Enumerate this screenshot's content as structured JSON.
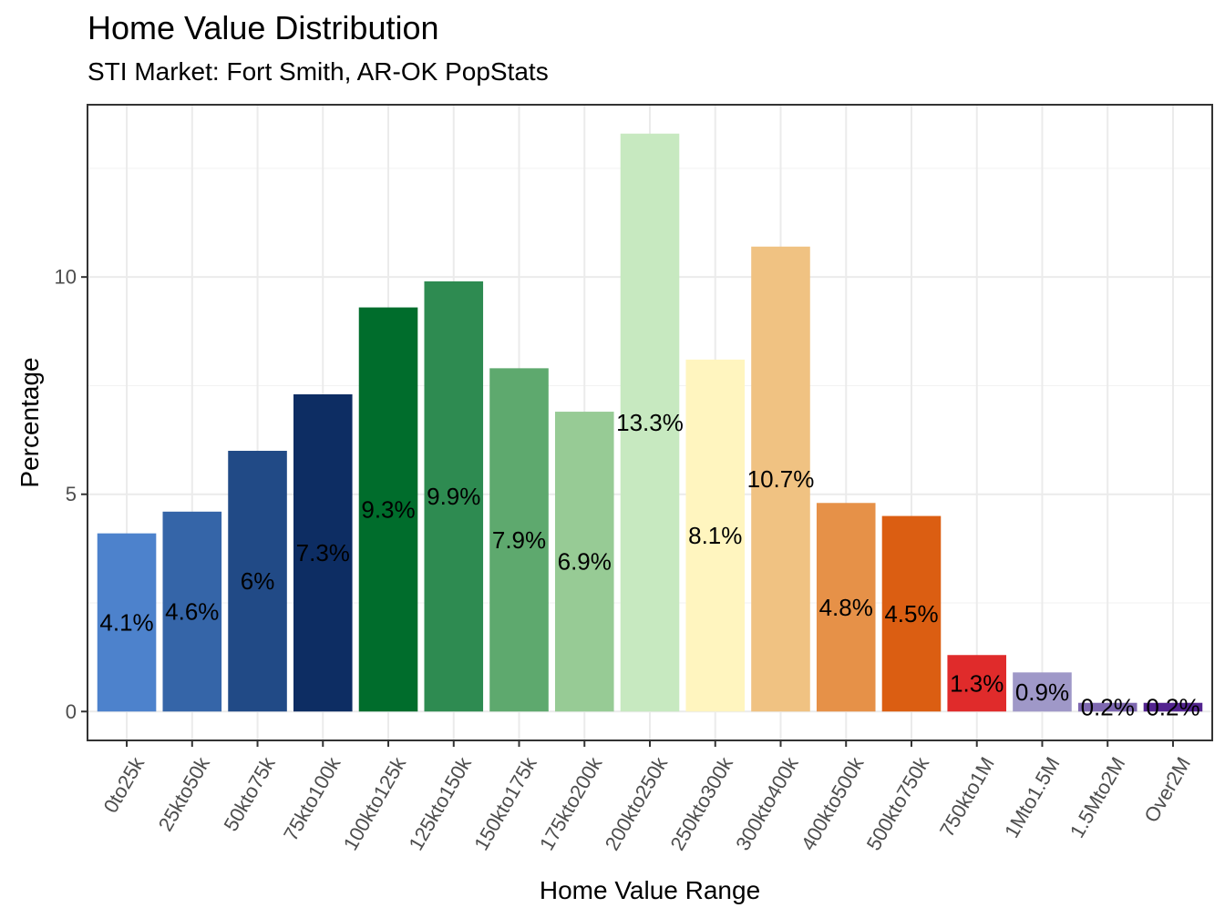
{
  "title": "Home Value Distribution",
  "subtitle": "STI Market: Fort Smith, AR-OK PopStats",
  "chart_data": {
    "type": "bar",
    "title": "Home Value Distribution",
    "subtitle": "STI Market: Fort Smith, AR-OK PopStats",
    "xlabel": "Home Value Range",
    "ylabel": "Percentage",
    "categories": [
      "0to25k",
      "25kto50k",
      "50kto75k",
      "75kto100k",
      "100kto125k",
      "125kto150k",
      "150kto175k",
      "175kto200k",
      "200kto250k",
      "250kto300k",
      "300kto400k",
      "400kto500k",
      "500kto750k",
      "750kto1M",
      "1Mto1.5M",
      "1.5Mto2M",
      "Over2M"
    ],
    "values": [
      4.1,
      4.6,
      6.0,
      7.3,
      9.3,
      9.9,
      7.9,
      6.9,
      13.3,
      8.1,
      10.7,
      4.8,
      4.5,
      1.3,
      0.9,
      0.2,
      0.2
    ],
    "labels": [
      "4.1%",
      "4.6%",
      "6%",
      "7.3%",
      "9.3%",
      "9.9%",
      "7.9%",
      "6.9%",
      "13.3%",
      "8.1%",
      "10.7%",
      "4.8%",
      "4.5%",
      "1.3%",
      "0.9%",
      "0.2%",
      "0.2%"
    ],
    "colors": [
      "#4d82cc",
      "#3565a8",
      "#214a86",
      "#0d2d63",
      "#006d2c",
      "#2e8b51",
      "#5ea96e",
      "#97cb95",
      "#c7e9c0",
      "#fff5bf",
      "#f0c282",
      "#e69148",
      "#db5e12",
      "#e02b2b",
      "#9f98c8",
      "#7e68b0",
      "#53248f"
    ],
    "y_ticks": [
      0,
      5,
      10
    ],
    "ylim": [
      -0.665,
      13.965
    ],
    "grid": true,
    "legend": "none"
  }
}
